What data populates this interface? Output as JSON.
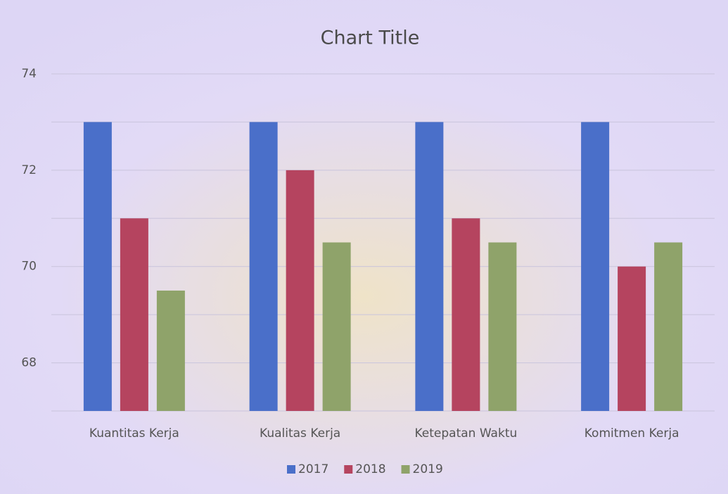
{
  "chart_data": {
    "type": "bar",
    "title": "Chart Title",
    "categories": [
      "Kuantitas Kerja",
      "Kualitas Kerja",
      "Ketepatan Waktu",
      "Komitmen Kerja"
    ],
    "series": [
      {
        "name": "2017",
        "color": "#4a6fc9",
        "values": [
          73,
          73,
          73,
          73
        ]
      },
      {
        "name": "2018",
        "color": "#b5445f",
        "values": [
          71,
          72,
          71,
          70
        ]
      },
      {
        "name": "2019",
        "color": "#8fa36a",
        "values": [
          69.5,
          70.5,
          70.5,
          70.5
        ]
      }
    ],
    "ylim": [
      67,
      74
    ],
    "yticks": [
      68,
      70,
      72,
      74
    ],
    "minor_yticks": [
      67,
      69,
      71,
      73
    ],
    "grid": true,
    "legend": "bottom"
  }
}
